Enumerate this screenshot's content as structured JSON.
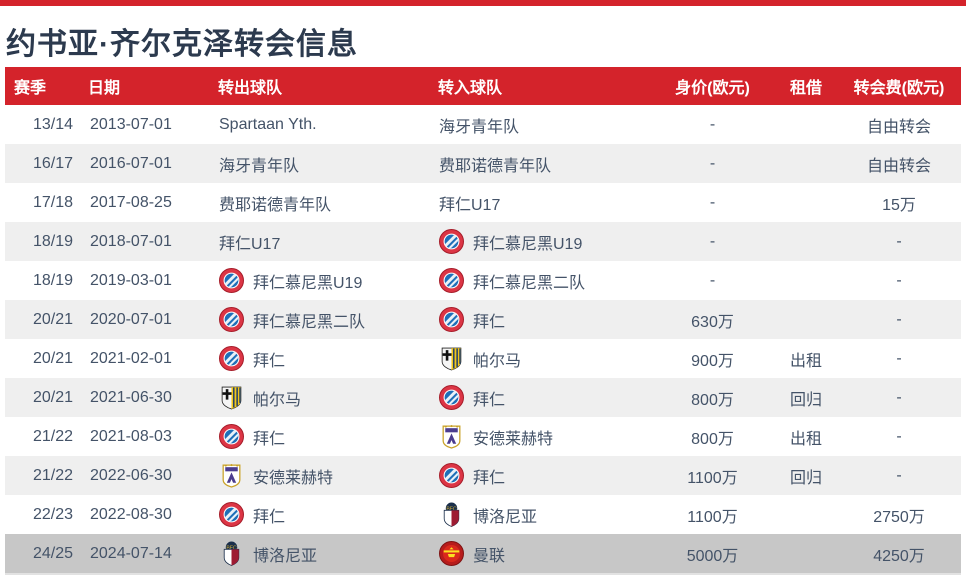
{
  "page": {
    "title": "约书亚·齐尔克泽转会信息",
    "colors": {
      "accent_red": "#d4232b",
      "title_navy": "#2c3a4e",
      "body_text": "#445368",
      "row_alt_gray": "#efefef",
      "row_highlight_gray": "#c7c7c7"
    }
  },
  "table": {
    "columns": [
      {
        "key": "season",
        "label": "赛季"
      },
      {
        "key": "date",
        "label": "日期"
      },
      {
        "key": "team_out",
        "label": "转出球队"
      },
      {
        "key": "team_in",
        "label": "转入球队"
      },
      {
        "key": "value",
        "label": "身价(欧元)"
      },
      {
        "key": "loan",
        "label": "租借"
      },
      {
        "key": "fee",
        "label": "转会费(欧元)"
      }
    ],
    "rows": [
      {
        "season": "13/14",
        "date": "2013-07-01",
        "team_out": {
          "name": "Spartaan Yth.",
          "logo": null
        },
        "team_in": {
          "name": "海牙青年队",
          "logo": null
        },
        "value": "-",
        "loan": "",
        "fee": "自由转会",
        "highlight": false
      },
      {
        "season": "16/17",
        "date": "2016-07-01",
        "team_out": {
          "name": "海牙青年队",
          "logo": null
        },
        "team_in": {
          "name": "费耶诺德青年队",
          "logo": null
        },
        "value": "-",
        "loan": "",
        "fee": "自由转会",
        "highlight": false
      },
      {
        "season": "17/18",
        "date": "2017-08-25",
        "team_out": {
          "name": "费耶诺德青年队",
          "logo": null
        },
        "team_in": {
          "name": "拜仁U17",
          "logo": null
        },
        "value": "-",
        "loan": "",
        "fee": "15万",
        "highlight": false
      },
      {
        "season": "18/19",
        "date": "2018-07-01",
        "team_out": {
          "name": "拜仁U17",
          "logo": null
        },
        "team_in": {
          "name": "拜仁慕尼黑U19",
          "logo": "bayern"
        },
        "value": "-",
        "loan": "",
        "fee": "-",
        "highlight": false
      },
      {
        "season": "18/19",
        "date": "2019-03-01",
        "team_out": {
          "name": "拜仁慕尼黑U19",
          "logo": "bayern"
        },
        "team_in": {
          "name": "拜仁慕尼黑二队",
          "logo": "bayern"
        },
        "value": "-",
        "loan": "",
        "fee": "-",
        "highlight": false
      },
      {
        "season": "20/21",
        "date": "2020-07-01",
        "team_out": {
          "name": "拜仁慕尼黑二队",
          "logo": "bayern"
        },
        "team_in": {
          "name": "拜仁",
          "logo": "bayern"
        },
        "value": "630万",
        "loan": "",
        "fee": "-",
        "highlight": false
      },
      {
        "season": "20/21",
        "date": "2021-02-01",
        "team_out": {
          "name": "拜仁",
          "logo": "bayern"
        },
        "team_in": {
          "name": "帕尔马",
          "logo": "parma"
        },
        "value": "900万",
        "loan": "出租",
        "fee": "-",
        "highlight": false
      },
      {
        "season": "20/21",
        "date": "2021-06-30",
        "team_out": {
          "name": "帕尔马",
          "logo": "parma"
        },
        "team_in": {
          "name": "拜仁",
          "logo": "bayern"
        },
        "value": "800万",
        "loan": "回归",
        "fee": "-",
        "highlight": false
      },
      {
        "season": "21/22",
        "date": "2021-08-03",
        "team_out": {
          "name": "拜仁",
          "logo": "bayern"
        },
        "team_in": {
          "name": "安德莱赫特",
          "logo": "anderlecht"
        },
        "value": "800万",
        "loan": "出租",
        "fee": "-",
        "highlight": false
      },
      {
        "season": "21/22",
        "date": "2022-06-30",
        "team_out": {
          "name": "安德莱赫特",
          "logo": "anderlecht"
        },
        "team_in": {
          "name": "拜仁",
          "logo": "bayern"
        },
        "value": "1100万",
        "loan": "回归",
        "fee": "-",
        "highlight": false
      },
      {
        "season": "22/23",
        "date": "2022-08-30",
        "team_out": {
          "name": "拜仁",
          "logo": "bayern"
        },
        "team_in": {
          "name": "博洛尼亚",
          "logo": "bologna"
        },
        "value": "1100万",
        "loan": "",
        "fee": "2750万",
        "highlight": false
      },
      {
        "season": "24/25",
        "date": "2024-07-14",
        "team_out": {
          "name": "博洛尼亚",
          "logo": "bologna"
        },
        "team_in": {
          "name": "曼联",
          "logo": "manutd"
        },
        "value": "5000万",
        "loan": "",
        "fee": "4250万",
        "highlight": true
      }
    ]
  }
}
